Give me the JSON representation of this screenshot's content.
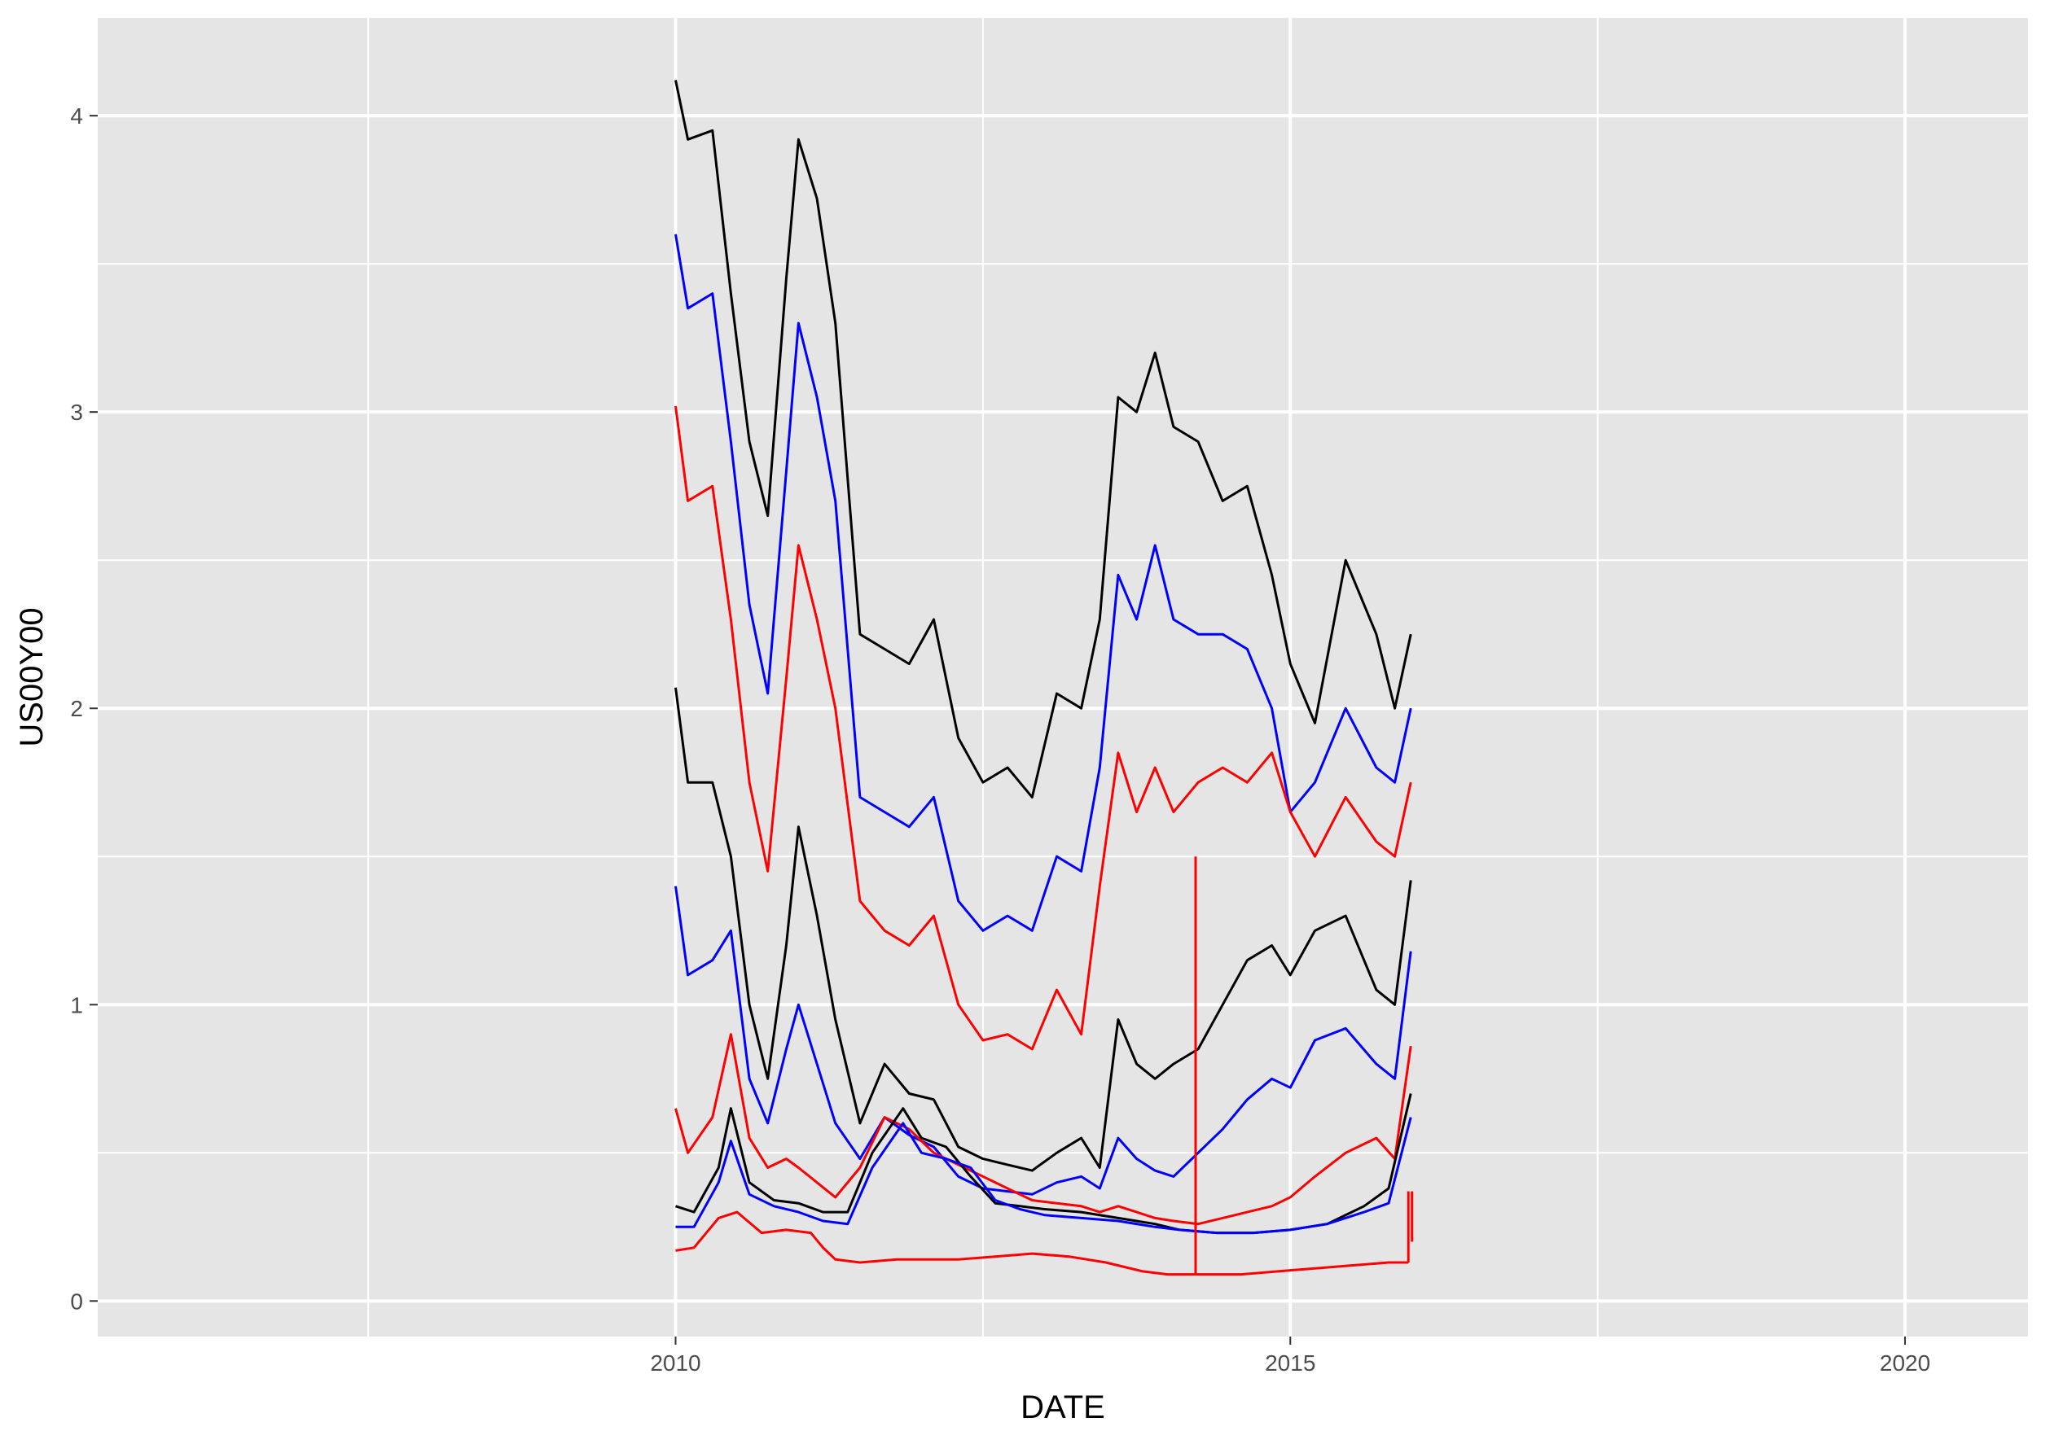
{
  "colors": {
    "panel_background": "#e5e5e5",
    "grid": "#ffffff",
    "black_series": "#000000",
    "blue_series": "#0000ff",
    "red_series": "#ff0000"
  },
  "chart_data": {
    "type": "line",
    "title": "",
    "xlabel": "DATE",
    "ylabel": "US00Y00",
    "xlim": [
      2005.3,
      2021.0
    ],
    "ylim": [
      -0.12,
      4.33
    ],
    "x_ticks": [
      2010,
      2015,
      2020
    ],
    "x_tick_labels": [
      "2010",
      "2015",
      "2020"
    ],
    "y_ticks": [
      0,
      1,
      2,
      3,
      4
    ],
    "y_tick_labels": [
      "0",
      "1",
      "2",
      "3",
      "4"
    ],
    "grid": true,
    "legend": "none",
    "series": [
      {
        "color": "black",
        "x": [
          2010.0,
          2010.1,
          2010.3,
          2010.45,
          2010.6,
          2010.75,
          2010.9,
          2011.0,
          2011.15,
          2011.3,
          2011.5,
          2011.7,
          2011.9,
          2012.1,
          2012.3,
          2012.5,
          2012.7,
          2012.9,
          2013.1,
          2013.3,
          2013.45,
          2013.6,
          2013.75,
          2013.9,
          2014.05,
          2014.25,
          2014.45,
          2014.65,
          2014.85,
          2015.0,
          2015.2,
          2015.45,
          2015.7,
          2015.85,
          2015.98
        ],
        "y": [
          4.12,
          3.92,
          3.95,
          3.4,
          2.9,
          2.65,
          3.45,
          3.92,
          3.72,
          3.3,
          2.25,
          2.2,
          2.15,
          2.3,
          1.9,
          1.75,
          1.8,
          1.7,
          2.05,
          2.0,
          2.3,
          3.05,
          3.0,
          3.2,
          2.95,
          2.9,
          2.7,
          2.75,
          2.45,
          2.15,
          1.95,
          2.5,
          2.25,
          2.0,
          2.25
        ]
      },
      {
        "color": "blue",
        "x": [
          2010.0,
          2010.1,
          2010.3,
          2010.45,
          2010.6,
          2010.75,
          2010.9,
          2011.0,
          2011.15,
          2011.3,
          2011.5,
          2011.7,
          2011.9,
          2012.1,
          2012.3,
          2012.5,
          2012.7,
          2012.9,
          2013.1,
          2013.3,
          2013.45,
          2013.6,
          2013.75,
          2013.9,
          2014.05,
          2014.25,
          2014.45,
          2014.65,
          2014.85,
          2015.0,
          2015.2,
          2015.45,
          2015.7,
          2015.85,
          2015.98
        ],
        "y": [
          3.6,
          3.35,
          3.4,
          2.9,
          2.35,
          2.05,
          2.8,
          3.3,
          3.05,
          2.7,
          1.7,
          1.65,
          1.6,
          1.7,
          1.35,
          1.25,
          1.3,
          1.25,
          1.5,
          1.45,
          1.8,
          2.45,
          2.3,
          2.55,
          2.3,
          2.25,
          2.25,
          2.2,
          2.0,
          1.65,
          1.75,
          2.0,
          1.8,
          1.75,
          2.0
        ]
      },
      {
        "color": "red",
        "x": [
          2010.0,
          2010.1,
          2010.3,
          2010.45,
          2010.6,
          2010.75,
          2010.9,
          2011.0,
          2011.15,
          2011.3,
          2011.5,
          2011.7,
          2011.9,
          2012.1,
          2012.3,
          2012.5,
          2012.7,
          2012.9,
          2013.1,
          2013.3,
          2013.45,
          2013.6,
          2013.75,
          2013.9,
          2014.05,
          2014.25,
          2014.45,
          2014.65,
          2014.85,
          2015.0,
          2015.2,
          2015.45,
          2015.7,
          2015.85,
          2015.98
        ],
        "y": [
          3.02,
          2.7,
          2.75,
          2.3,
          1.75,
          1.45,
          2.1,
          2.55,
          2.3,
          2.0,
          1.35,
          1.25,
          1.2,
          1.3,
          1.0,
          0.88,
          0.9,
          0.85,
          1.05,
          0.9,
          1.4,
          1.85,
          1.65,
          1.8,
          1.65,
          1.75,
          1.8,
          1.75,
          1.85,
          1.65,
          1.5,
          1.7,
          1.55,
          1.5,
          1.75
        ]
      },
      {
        "color": "black",
        "x": [
          2010.0,
          2010.1,
          2010.3,
          2010.45,
          2010.6,
          2010.75,
          2010.9,
          2011.0,
          2011.15,
          2011.3,
          2011.5,
          2011.7,
          2011.9,
          2012.1,
          2012.3,
          2012.5,
          2012.7,
          2012.9,
          2013.1,
          2013.3,
          2013.45,
          2013.6,
          2013.75,
          2013.9,
          2014.05,
          2014.25,
          2014.45,
          2014.65,
          2014.85,
          2015.0,
          2015.2,
          2015.45,
          2015.7,
          2015.85,
          2015.98
        ],
        "y": [
          2.07,
          1.75,
          1.75,
          1.5,
          1.0,
          0.75,
          1.2,
          1.6,
          1.3,
          0.95,
          0.6,
          0.8,
          0.7,
          0.68,
          0.52,
          0.48,
          0.46,
          0.44,
          0.5,
          0.55,
          0.45,
          0.95,
          0.8,
          0.75,
          0.8,
          0.85,
          1.0,
          1.15,
          1.2,
          1.1,
          1.25,
          1.3,
          1.05,
          1.0,
          1.42
        ]
      },
      {
        "color": "blue",
        "x": [
          2010.0,
          2010.1,
          2010.3,
          2010.45,
          2010.6,
          2010.75,
          2010.9,
          2011.0,
          2011.15,
          2011.3,
          2011.5,
          2011.7,
          2011.9,
          2012.1,
          2012.3,
          2012.5,
          2012.7,
          2012.9,
          2013.1,
          2013.3,
          2013.45,
          2013.6,
          2013.75,
          2013.9,
          2014.05,
          2014.25,
          2014.45,
          2014.65,
          2014.85,
          2015.0,
          2015.2,
          2015.45,
          2015.7,
          2015.85,
          2015.98
        ],
        "y": [
          1.4,
          1.1,
          1.15,
          1.25,
          0.75,
          0.6,
          0.85,
          1.0,
          0.8,
          0.6,
          0.48,
          0.62,
          0.56,
          0.52,
          0.42,
          0.38,
          0.37,
          0.36,
          0.4,
          0.42,
          0.38,
          0.55,
          0.48,
          0.44,
          0.42,
          0.5,
          0.58,
          0.68,
          0.75,
          0.72,
          0.88,
          0.92,
          0.8,
          0.75,
          1.18
        ]
      },
      {
        "color": "red",
        "x": [
          2010.0,
          2010.1,
          2010.3,
          2010.45,
          2010.6,
          2010.75,
          2010.9,
          2011.0,
          2011.15,
          2011.3,
          2011.5,
          2011.7,
          2011.9,
          2012.1,
          2012.3,
          2012.5,
          2012.7,
          2012.9,
          2013.1,
          2013.3,
          2013.45,
          2013.6,
          2013.75,
          2013.9,
          2014.05,
          2014.25,
          2014.45,
          2014.65,
          2014.85,
          2015.0,
          2015.2,
          2015.45,
          2015.7,
          2015.85,
          2015.98
        ],
        "y": [
          0.65,
          0.5,
          0.62,
          0.9,
          0.55,
          0.45,
          0.48,
          0.45,
          0.4,
          0.35,
          0.45,
          0.62,
          0.58,
          0.5,
          0.46,
          0.42,
          0.38,
          0.34,
          0.33,
          0.32,
          0.3,
          0.32,
          0.3,
          0.28,
          0.27,
          0.26,
          0.28,
          0.3,
          0.32,
          0.35,
          0.42,
          0.5,
          0.55,
          0.48,
          0.86
        ]
      },
      {
        "color": "black",
        "x": [
          2010.0,
          2010.15,
          2010.35,
          2010.45,
          2010.6,
          2010.8,
          2011.0,
          2011.2,
          2011.4,
          2011.6,
          2011.85,
          2012.0,
          2012.2,
          2012.4,
          2012.6,
          2012.8,
          2013.0,
          2013.3,
          2013.6,
          2013.9,
          2014.1,
          2014.4,
          2014.7,
          2015.0,
          2015.3,
          2015.6,
          2015.8,
          2015.98
        ],
        "y": [
          0.32,
          0.3,
          0.45,
          0.65,
          0.4,
          0.34,
          0.33,
          0.3,
          0.3,
          0.5,
          0.65,
          0.55,
          0.52,
          0.42,
          0.33,
          0.32,
          0.31,
          0.3,
          0.28,
          0.26,
          0.24,
          0.23,
          0.23,
          0.24,
          0.26,
          0.32,
          0.38,
          0.7
        ]
      },
      {
        "color": "blue",
        "x": [
          2010.0,
          2010.15,
          2010.35,
          2010.45,
          2010.6,
          2010.8,
          2011.0,
          2011.2,
          2011.4,
          2011.6,
          2011.85,
          2012.0,
          2012.2,
          2012.4,
          2012.6,
          2012.8,
          2013.0,
          2013.3,
          2013.6,
          2013.9,
          2014.1,
          2014.4,
          2014.7,
          2015.0,
          2015.3,
          2015.6,
          2015.8,
          2015.98
        ],
        "y": [
          0.25,
          0.25,
          0.4,
          0.54,
          0.36,
          0.32,
          0.3,
          0.27,
          0.26,
          0.45,
          0.6,
          0.5,
          0.48,
          0.45,
          0.34,
          0.31,
          0.29,
          0.28,
          0.27,
          0.25,
          0.24,
          0.23,
          0.23,
          0.24,
          0.26,
          0.3,
          0.33,
          0.62
        ]
      },
      {
        "color": "red",
        "x": [
          2010.0,
          2010.15,
          2010.35,
          2010.5,
          2010.7,
          2010.9,
          2011.1,
          2011.2,
          2011.3,
          2011.5,
          2011.8,
          2012.0,
          2012.3,
          2012.6,
          2012.9,
          2013.2,
          2013.5,
          2013.8,
          2014.0,
          2014.3,
          2014.6,
          2014.9,
          2015.2,
          2015.5,
          2015.8,
          2015.96
        ],
        "y": [
          0.17,
          0.18,
          0.28,
          0.3,
          0.23,
          0.24,
          0.23,
          0.18,
          0.14,
          0.13,
          0.14,
          0.14,
          0.14,
          0.15,
          0.16,
          0.15,
          0.13,
          0.1,
          0.09,
          0.09,
          0.09,
          0.1,
          0.11,
          0.12,
          0.13,
          0.13
        ]
      },
      {
        "color": "red",
        "x": [
          2014.23,
          2014.23
        ],
        "y": [
          0.09,
          1.5
        ]
      },
      {
        "color": "red",
        "x": [
          2015.96,
          2015.96
        ],
        "y": [
          0.13,
          0.37
        ]
      },
      {
        "color": "red",
        "x": [
          2015.99,
          2015.99
        ],
        "y": [
          0.2,
          0.37
        ]
      }
    ]
  }
}
